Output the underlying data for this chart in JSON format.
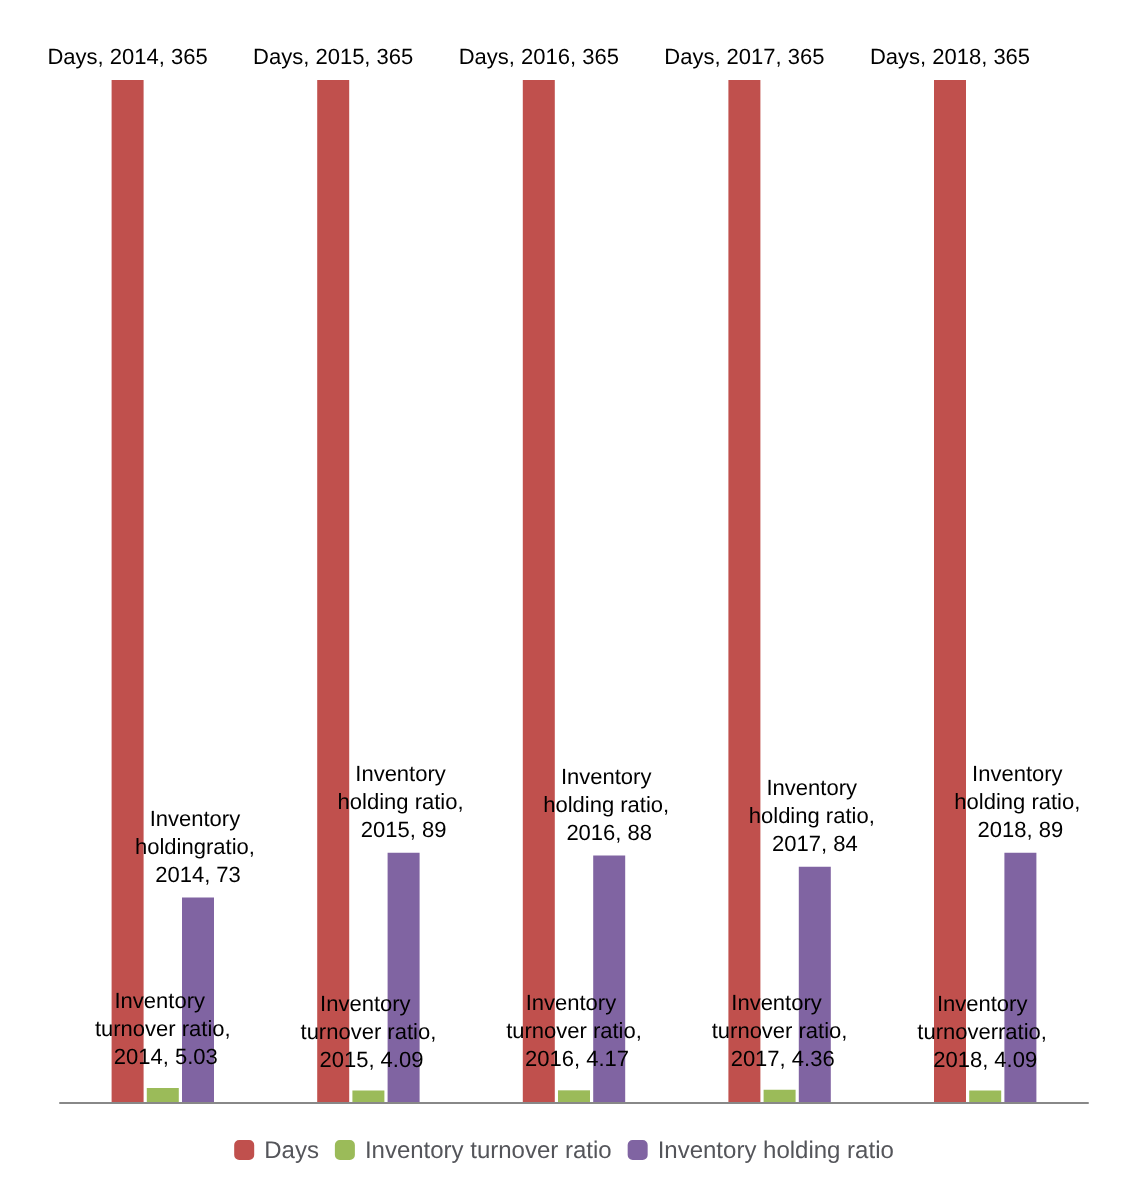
{
  "chart_data": {
    "type": "bar",
    "categories": [
      null,
      null,
      null,
      null,
      null
    ],
    "series": [
      {
        "name": "Days",
        "color": "#c0504d",
        "values": [
          365,
          365,
          365,
          365,
          365
        ],
        "value_labels": [
          "Days, 2014, 365",
          "Days, 2015, 365",
          "Days, 2016, 365",
          "Days, 2017, 365",
          "Days, 2018, 365"
        ]
      },
      {
        "name": "Inventory turnover ratio",
        "color": "#9bbb59",
        "values": [
          5.03,
          4.09,
          4.17,
          4.36,
          4.09
        ],
        "value_labels": [
          "Inventory turnover ratio, 2014, 5.03",
          "Inventory turnover ratio, 2015, 4.09",
          "Inventory turnover ratio, 2016, 4.17",
          "Inventory turnover ratio, 2017, 4.36",
          "Inventory turnoverratio, 2018, 4.09"
        ]
      },
      {
        "name": "Inventory holding ratio",
        "color": "#8064a2",
        "values": [
          73,
          89,
          88,
          84,
          89
        ],
        "value_labels": [
          "Inventory holdingratio, 2014, 73",
          "Inventory holding ratio, 2015, 89",
          "Inventory holding ratio, 2016, 88",
          "Inventory holding ratio, 2017, 84",
          "Inventory holding ratio, 2018, 89"
        ]
      }
    ],
    "tick_labels": false,
    "legend": "bottom"
  }
}
